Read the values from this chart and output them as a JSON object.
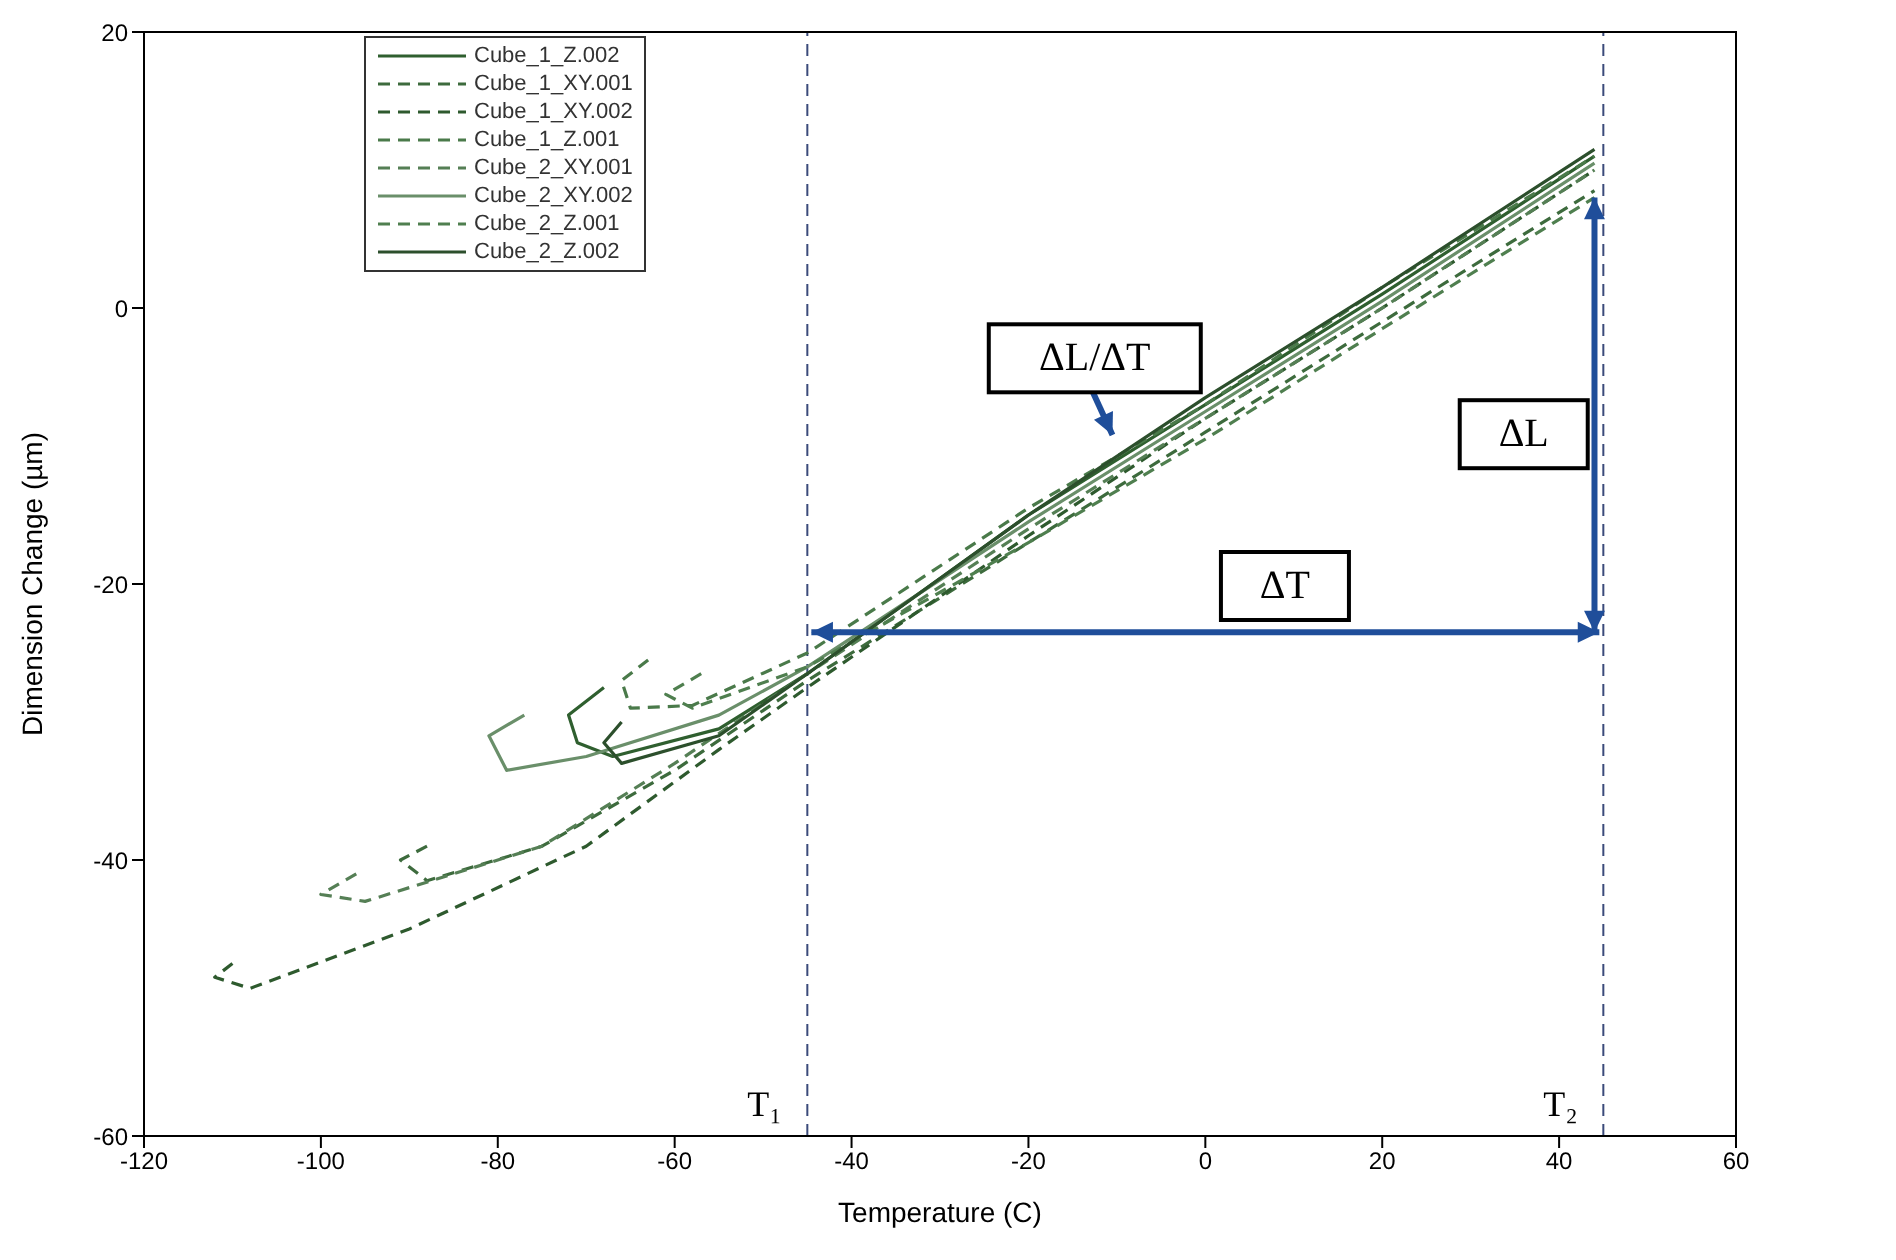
{
  "chart_data": {
    "type": "line",
    "xlabel": "Temperature (C)",
    "ylabel": "Dimension Change (µm)",
    "xlim": [
      -120,
      60
    ],
    "xticks": [
      -120,
      -100,
      -80,
      -60,
      -40,
      -20,
      0,
      20,
      40,
      60
    ],
    "ylim": [
      -60,
      20
    ],
    "yticks": [
      -60,
      -40,
      -20,
      0,
      20
    ],
    "grid": false,
    "legend": "top left",
    "marker": "none",
    "series": [
      {
        "name": "Cube_1_Z.002",
        "color": "#2f5f2f",
        "line_style": "solid",
        "x": [
          -68,
          -72,
          -71,
          -67,
          -55,
          -45,
          -20,
          0,
          20,
          44
        ],
        "values": [
          -27.5,
          -29.5,
          -31.5,
          -32.5,
          -30.5,
          -26.5,
          -15,
          -7,
          1,
          11
        ]
      },
      {
        "name": "Cube_1_XY.001",
        "color": "#3d6b3d",
        "line_style": "dashed",
        "x": [
          -88,
          -91,
          -88,
          -75,
          -60,
          -45,
          -20,
          0,
          20,
          44
        ],
        "values": [
          -39,
          -40,
          -41.5,
          -39,
          -33.5,
          -27,
          -17,
          -9,
          -1,
          8.5
        ]
      },
      {
        "name": "Cube_1_XY.002",
        "color": "#2e5a2e",
        "line_style": "dashed",
        "x": [
          -110,
          -112,
          -108,
          -90,
          -70,
          -55,
          -45,
          -20,
          0,
          20,
          44
        ],
        "values": [
          -47.5,
          -48.5,
          -49.3,
          -45,
          -39,
          -32,
          -27.5,
          -16.5,
          -8,
          0,
          10
        ]
      },
      {
        "name": "Cube_1_Z.001",
        "color": "#4a7a4a",
        "line_style": "dashed",
        "x": [
          -63,
          -66,
          -65,
          -58,
          -45,
          -20,
          0,
          20,
          44
        ],
        "values": [
          -25.5,
          -27,
          -29,
          -28.8,
          -25,
          -14.5,
          -7,
          1.5,
          11
        ]
      },
      {
        "name": "Cube_2_XY.001",
        "color": "#557f55",
        "line_style": "dashed",
        "x": [
          -96,
          -100,
          -95,
          -75,
          -60,
          -45,
          -20,
          0,
          20,
          44
        ],
        "values": [
          -41,
          -42.5,
          -43,
          -39,
          -33,
          -26.5,
          -16,
          -8,
          0,
          10
        ]
      },
      {
        "name": "Cube_2_XY.002",
        "color": "#6a8f6a",
        "line_style": "solid",
        "x": [
          -77,
          -81,
          -79,
          -70,
          -55,
          -45,
          -20,
          0,
          20,
          44
        ],
        "values": [
          -29.5,
          -31,
          -33.5,
          -32.5,
          -29.5,
          -26,
          -15.5,
          -7.5,
          0.5,
          10.5
        ]
      },
      {
        "name": "Cube_2_Z.001",
        "color": "#4f7f4f",
        "line_style": "dashed",
        "x": [
          -57,
          -61,
          -58,
          -45,
          -20,
          0,
          20,
          44
        ],
        "values": [
          -26.5,
          -28,
          -29,
          -26,
          -17,
          -9.5,
          -1.5,
          8
        ]
      },
      {
        "name": "Cube_2_Z.002",
        "color": "#2c4f2c",
        "line_style": "solid",
        "x": [
          -66,
          -68,
          -66,
          -55,
          -45,
          -20,
          0,
          20,
          44
        ],
        "values": [
          -30,
          -31.5,
          -33,
          -31,
          -26.5,
          -15,
          -6.5,
          1.5,
          11.5
        ]
      }
    ],
    "ref_lines": [
      {
        "axis": "x",
        "value": -45,
        "label": "T₁",
        "color": "#3a4a7a",
        "line_style": "dashed"
      },
      {
        "axis": "x",
        "value": 45,
        "label": "T₂",
        "color": "#3a4a7a",
        "line_style": "dashed"
      }
    ],
    "annotations": [
      "ΔL/ΔT",
      "ΔL",
      "ΔT"
    ]
  }
}
